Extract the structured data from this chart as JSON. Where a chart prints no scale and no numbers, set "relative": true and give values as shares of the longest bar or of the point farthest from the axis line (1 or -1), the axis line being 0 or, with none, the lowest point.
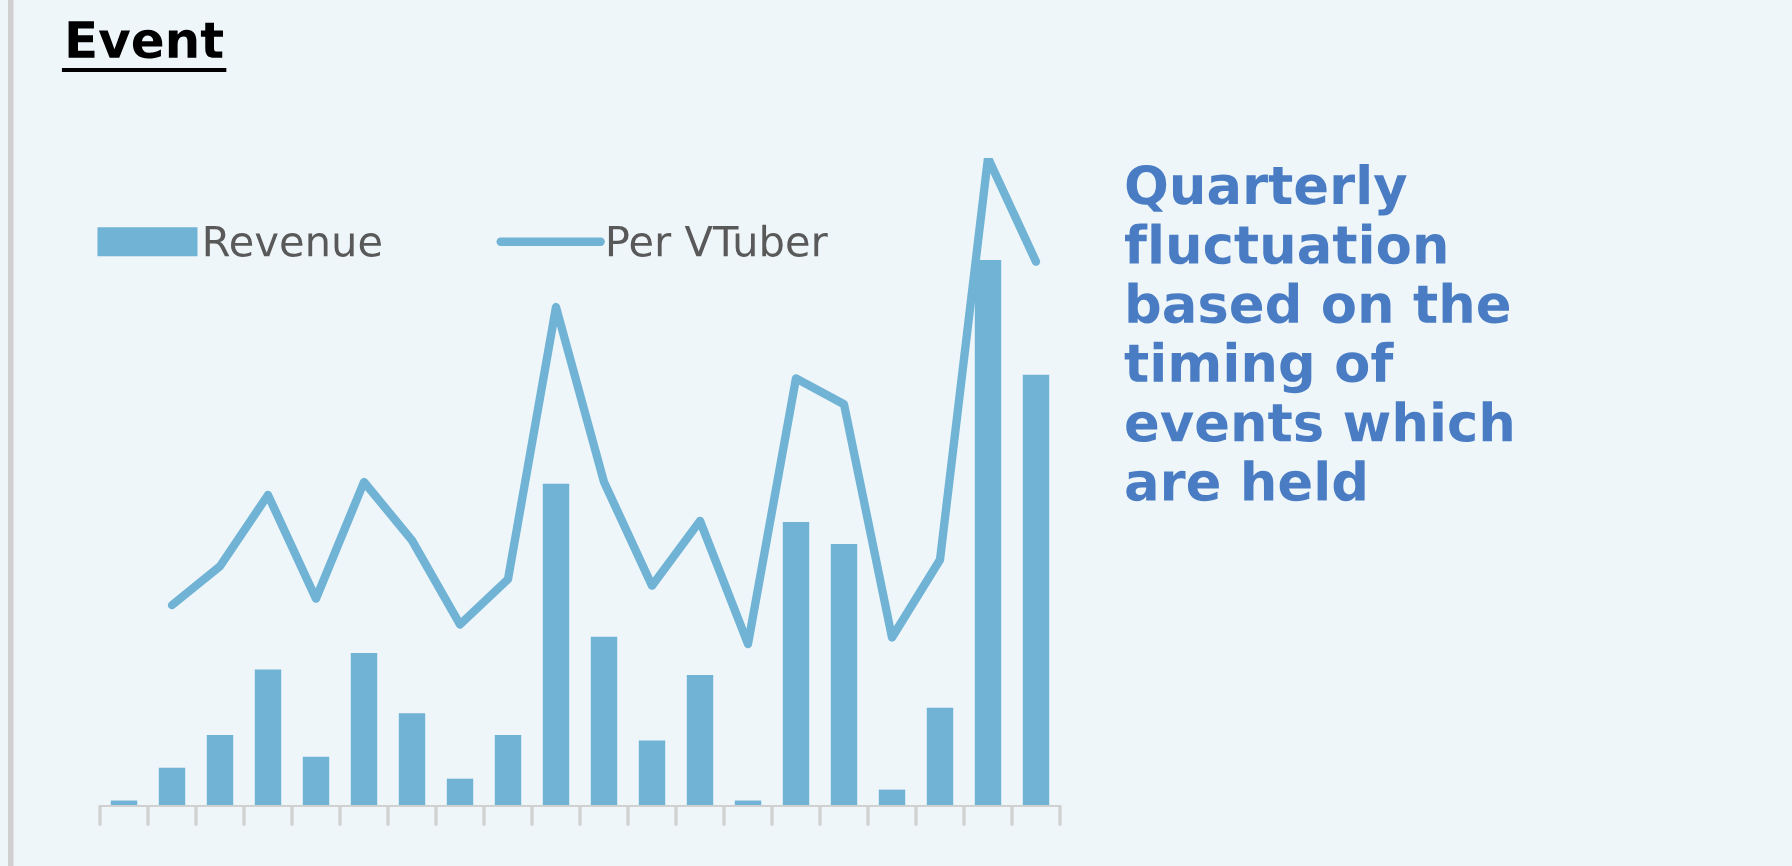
{
  "chart_data": [
    {
      "type": "bar",
      "title": "Event",
      "relative": true,
      "tick_labels": false,
      "grid": false,
      "legend": "top left",
      "categories": [
        null,
        null,
        null,
        null,
        null,
        null,
        null,
        null,
        null,
        null,
        null,
        null,
        null,
        null,
        null,
        null,
        null,
        null,
        null,
        null
      ],
      "series": [
        {
          "name": "Revenue",
          "color": "#70b3d5",
          "values": [
            0.01,
            0.07,
            0.13,
            0.25,
            0.09,
            0.28,
            0.17,
            0.05,
            0.13,
            0.59,
            0.31,
            0.12,
            0.24,
            0.01,
            0.52,
            0.48,
            0.03,
            0.18,
            1.0,
            0.79
          ]
        }
      ]
    },
    {
      "type": "line",
      "relative": true,
      "tick_labels": false,
      "grid": false,
      "legend": "top",
      "categories": [
        null,
        null,
        null,
        null,
        null,
        null,
        null,
        null,
        null,
        null,
        null,
        null,
        null,
        null,
        null,
        null,
        null,
        null,
        null,
        null
      ],
      "series": [
        {
          "name": "Per VTuber",
          "color": "#70b3d5",
          "values": [
            null,
            0.31,
            0.37,
            0.48,
            0.32,
            0.5,
            0.41,
            0.28,
            0.35,
            0.77,
            0.5,
            0.34,
            0.44,
            0.25,
            0.66,
            0.62,
            0.26,
            0.38,
            1.0,
            0.84
          ]
        }
      ],
      "annotations": [
        "Quarterly\nfluctuation\nbased on the\ntiming of\nevents which\nare held"
      ]
    }
  ]
}
